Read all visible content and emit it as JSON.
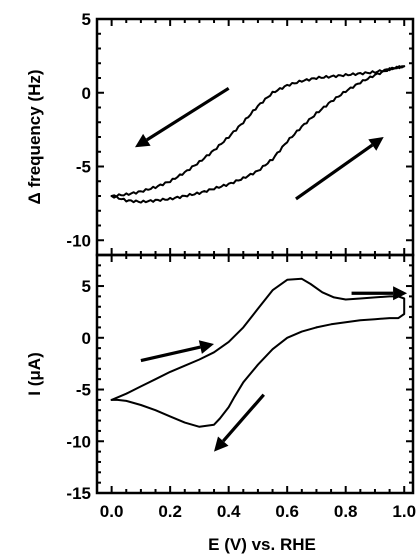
{
  "chart_data": [
    {
      "type": "line",
      "panel": "top",
      "ylabel": "Δ frequency (Hz)",
      "xlabel": "",
      "xlim": [
        -0.05,
        1.03
      ],
      "ylim": [
        -11,
        5
      ],
      "yticks": [
        5,
        0,
        -5,
        -10
      ],
      "ytick_labels": [
        "5",
        "0",
        "-5",
        "-10"
      ],
      "grid": false,
      "series": [
        {
          "branch": "anodic",
          "x": [
            0.0,
            0.05,
            0.1,
            0.15,
            0.2,
            0.25,
            0.3,
            0.35,
            0.4,
            0.45,
            0.5,
            0.55,
            0.6,
            0.65,
            0.7,
            0.75,
            0.8,
            0.85,
            0.9,
            0.95,
            1.0
          ],
          "y": [
            -7.0,
            -7.3,
            -7.4,
            -7.3,
            -7.2,
            -7.0,
            -6.8,
            -6.5,
            -6.2,
            -5.8,
            -5.3,
            -4.5,
            -3.3,
            -2.3,
            -1.4,
            -0.6,
            0.1,
            0.7,
            1.2,
            1.6,
            1.8
          ]
        },
        {
          "branch": "cathodic",
          "x": [
            1.0,
            0.95,
            0.9,
            0.85,
            0.8,
            0.75,
            0.7,
            0.65,
            0.6,
            0.55,
            0.5,
            0.45,
            0.4,
            0.35,
            0.3,
            0.25,
            0.2,
            0.15,
            0.1,
            0.05,
            0.0
          ],
          "y": [
            1.8,
            1.6,
            1.4,
            1.3,
            1.2,
            1.1,
            1.0,
            0.8,
            0.5,
            0.0,
            -0.9,
            -2.0,
            -3.0,
            -3.9,
            -4.7,
            -5.4,
            -6.0,
            -6.4,
            -6.7,
            -6.9,
            -7.0
          ]
        }
      ],
      "arrows": [
        {
          "from": [
            0.4,
            0.3
          ],
          "to": [
            0.08,
            -3.7
          ]
        },
        {
          "from": [
            0.63,
            -7.2
          ],
          "to": [
            0.93,
            -3.0
          ]
        }
      ]
    },
    {
      "type": "line",
      "panel": "bottom",
      "ylabel": "I (μA)",
      "xlabel": "E (V) vs. RHE",
      "xlim": [
        -0.05,
        1.03
      ],
      "ylim": [
        -15,
        8
      ],
      "yticks": [
        5,
        0,
        -5,
        -10,
        -15
      ],
      "ytick_labels": [
        "5",
        "0",
        "-5",
        "-10",
        "-15"
      ],
      "xticks": [
        0.0,
        0.2,
        0.4,
        0.6,
        0.8,
        1.0
      ],
      "xtick_labels": [
        "0.0",
        "0.2",
        "0.4",
        "0.6",
        "0.8",
        "1.0"
      ],
      "grid": false,
      "series": [
        {
          "branch": "anodic",
          "x": [
            0.0,
            0.05,
            0.1,
            0.15,
            0.2,
            0.25,
            0.3,
            0.35,
            0.4,
            0.45,
            0.5,
            0.55,
            0.6,
            0.65,
            0.68,
            0.72,
            0.76,
            0.8
          ],
          "y": [
            -6.0,
            -5.4,
            -4.7,
            -4.0,
            -3.3,
            -2.7,
            -2.1,
            -1.4,
            -0.4,
            1.0,
            2.8,
            4.6,
            5.6,
            5.7,
            5.2,
            4.4,
            3.9,
            3.7
          ]
        },
        {
          "branch": "reversal",
          "x": [
            0.8,
            0.85,
            0.9,
            0.95,
            0.98,
            1.0,
            1.0,
            0.98,
            0.95,
            0.9,
            0.85,
            0.8,
            0.75,
            0.7
          ],
          "y": [
            3.7,
            3.8,
            3.9,
            4.0,
            4.0,
            3.8,
            2.3,
            1.9,
            1.9,
            1.8,
            1.7,
            1.5,
            1.3,
            1.0
          ]
        },
        {
          "branch": "cathodic",
          "x": [
            0.7,
            0.65,
            0.6,
            0.55,
            0.5,
            0.45,
            0.42,
            0.4,
            0.37,
            0.35,
            0.3,
            0.25,
            0.2,
            0.15,
            0.1,
            0.05,
            0.02,
            0.0
          ],
          "y": [
            1.0,
            0.6,
            0.0,
            -1.1,
            -2.6,
            -4.3,
            -5.7,
            -6.7,
            -7.8,
            -8.4,
            -8.6,
            -8.2,
            -7.6,
            -7.0,
            -6.5,
            -6.1,
            -6.0,
            -6.0
          ]
        }
      ],
      "arrows": [
        {
          "from": [
            0.1,
            -2.2
          ],
          "to": [
            0.35,
            -0.6
          ]
        },
        {
          "from": [
            0.82,
            4.3
          ],
          "to": [
            1.01,
            4.3
          ]
        },
        {
          "from": [
            0.52,
            -5.5
          ],
          "to": [
            0.35,
            -11.0
          ]
        }
      ]
    }
  ]
}
